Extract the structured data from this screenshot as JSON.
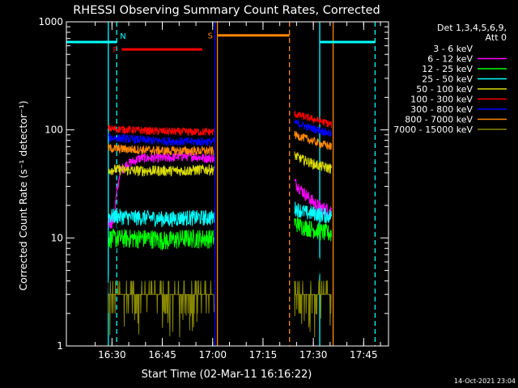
{
  "chart_data": {
    "type": "line",
    "title": "RHESSI Observing Summary Count Rates, Corrected",
    "xlabel": "Start Time (02-Mar-11 16:16:22)",
    "ylabel": "Corrected Count Rate (s⁻¹ detector⁻¹)",
    "ylog": true,
    "ylim": [
      1,
      1000
    ],
    "xlim_minutes_after_start": [
      0,
      96
    ],
    "x_ticks": [
      {
        "label": "16:30",
        "t": 13.6
      },
      {
        "label": "16:45",
        "t": 28.6
      },
      {
        "label": "17:00",
        "t": 43.6
      },
      {
        "label": "17:15",
        "t": 58.6
      },
      {
        "label": "17:30",
        "t": 73.6
      },
      {
        "label": "17:45",
        "t": 88.6
      }
    ],
    "y_ticks": [
      {
        "label": "1",
        "v": 1
      },
      {
        "label": "10",
        "v": 10
      },
      {
        "label": "100",
        "v": 100
      },
      {
        "label": "1000",
        "v": 1000
      }
    ],
    "legend_header": [
      "Det 1,3,4,5,6,9,",
      "Att 0"
    ],
    "legend_position": "right",
    "series": [
      {
        "name": "3 - 6 keV",
        "color": "#000000",
        "seg1": [
          [
            12.5,
            3.5
          ],
          [
            14,
            3.2
          ],
          [
            16,
            35
          ],
          [
            17,
            30
          ],
          [
            18,
            40
          ],
          [
            20,
            45
          ],
          [
            22,
            40
          ],
          [
            24,
            45
          ],
          [
            28,
            55
          ],
          [
            32,
            60
          ],
          [
            36,
            72
          ],
          [
            40,
            80
          ],
          [
            44,
            80
          ]
        ],
        "seg2": [
          [
            68,
            50
          ],
          [
            70,
            45
          ],
          [
            72,
            40
          ],
          [
            73.5,
            35
          ],
          [
            74,
            22
          ],
          [
            75,
            6
          ],
          [
            77,
            3.5
          ],
          [
            79,
            3
          ]
        ]
      },
      {
        "name": "6 - 12 keV",
        "color": "#ff00ff",
        "seg1": [
          [
            12.5,
            14
          ],
          [
            14,
            15
          ],
          [
            16,
            42
          ],
          [
            18,
            48
          ],
          [
            22,
            55
          ],
          [
            26,
            55
          ],
          [
            30,
            55
          ],
          [
            34,
            57
          ],
          [
            38,
            57
          ],
          [
            41,
            55
          ],
          [
            44,
            55
          ]
        ],
        "seg2": [
          [
            68,
            33
          ],
          [
            70,
            28
          ],
          [
            72,
            24
          ],
          [
            74,
            21
          ],
          [
            76,
            19
          ],
          [
            79,
            18
          ]
        ]
      },
      {
        "name": "12 - 25 keV",
        "color": "#00ff00",
        "seg1": [
          [
            12.5,
            10
          ],
          [
            15,
            10
          ],
          [
            20,
            10
          ],
          [
            25,
            10
          ],
          [
            30,
            9.5
          ],
          [
            35,
            10
          ],
          [
            40,
            10
          ],
          [
            44,
            10
          ]
        ],
        "seg2": [
          [
            68,
            14
          ],
          [
            70,
            13
          ],
          [
            72,
            12.5
          ],
          [
            74,
            12
          ],
          [
            76,
            11.5
          ],
          [
            79,
            11
          ]
        ]
      },
      {
        "name": "25 - 50 keV",
        "color": "#00ffff",
        "seg1": [
          [
            12.5,
            16
          ],
          [
            15,
            16
          ],
          [
            20,
            15.5
          ],
          [
            25,
            15.5
          ],
          [
            30,
            15
          ],
          [
            35,
            15.5
          ],
          [
            40,
            15.5
          ],
          [
            44,
            15.5
          ]
        ],
        "seg2": [
          [
            68,
            19
          ],
          [
            70,
            18
          ],
          [
            72,
            17
          ],
          [
            74,
            17
          ],
          [
            76,
            16.5
          ],
          [
            79,
            16
          ]
        ]
      },
      {
        "name": "50 - 100 keV",
        "color": "#dddd00",
        "seg1": [
          [
            12.5,
            43
          ],
          [
            15,
            43
          ],
          [
            20,
            42
          ],
          [
            25,
            42
          ],
          [
            30,
            42
          ],
          [
            35,
            42
          ],
          [
            40,
            43
          ],
          [
            44,
            43
          ]
        ],
        "seg2": [
          [
            68,
            58
          ],
          [
            70,
            54
          ],
          [
            72,
            51
          ],
          [
            74,
            48
          ],
          [
            76,
            46
          ],
          [
            79,
            44
          ]
        ]
      },
      {
        "name": "100 - 300 keV",
        "color": "#ff0000",
        "seg1": [
          [
            12.5,
            103
          ],
          [
            15,
            102
          ],
          [
            20,
            100
          ],
          [
            25,
            98
          ],
          [
            30,
            97
          ],
          [
            35,
            96
          ],
          [
            40,
            96
          ],
          [
            44,
            96
          ]
        ],
        "seg2": [
          [
            68,
            140
          ],
          [
            70,
            135
          ],
          [
            72,
            130
          ],
          [
            74,
            125
          ],
          [
            76,
            120
          ],
          [
            79,
            112
          ]
        ]
      },
      {
        "name": "300 - 800 keV",
        "color": "#0000ff",
        "seg1": [
          [
            12.5,
            85
          ],
          [
            15,
            84
          ],
          [
            20,
            82
          ],
          [
            25,
            80
          ],
          [
            30,
            79
          ],
          [
            35,
            78
          ],
          [
            40,
            78
          ],
          [
            44,
            78
          ]
        ],
        "seg2": [
          [
            68,
            118
          ],
          [
            70,
            112
          ],
          [
            72,
            106
          ],
          [
            74,
            102
          ],
          [
            76,
            98
          ],
          [
            79,
            92
          ]
        ]
      },
      {
        "name": "800 - 7000 keV",
        "color": "#ff8800",
        "seg1": [
          [
            12.5,
            68
          ],
          [
            15,
            67
          ],
          [
            20,
            66
          ],
          [
            25,
            65
          ],
          [
            30,
            64
          ],
          [
            35,
            64
          ],
          [
            40,
            64
          ],
          [
            44,
            64
          ]
        ],
        "seg2": [
          [
            68,
            90
          ],
          [
            70,
            86
          ],
          [
            72,
            82
          ],
          [
            74,
            78
          ],
          [
            76,
            74
          ],
          [
            79,
            70
          ]
        ]
      },
      {
        "name": "7000 - 15000 keV",
        "color": "#888800",
        "seg1": [
          [
            12.5,
            3
          ],
          [
            16,
            3
          ],
          [
            20,
            3
          ],
          [
            25,
            3
          ],
          [
            30,
            3
          ],
          [
            35,
            3
          ],
          [
            40,
            3
          ],
          [
            44,
            3
          ]
        ],
        "seg2": [
          [
            68,
            4
          ],
          [
            71,
            3
          ],
          [
            74,
            3
          ],
          [
            77,
            3
          ],
          [
            79,
            3
          ]
        ]
      }
    ],
    "flag_bars": [
      {
        "label": "N",
        "color": "#00ffff",
        "segments": [
          [
            0,
            15
          ],
          [
            75.5,
            92
          ]
        ],
        "value": 650
      },
      {
        "label": "F",
        "color": "#ff0000",
        "segments": [
          [
            16.5,
            40.5
          ]
        ],
        "value": 555
      },
      {
        "label": "S",
        "color": "#ff8800",
        "segments": [
          [
            45,
            66.5
          ]
        ],
        "value": 750
      }
    ],
    "vertical_lines": [
      {
        "t": 12.5,
        "color": "#00ffff",
        "dashed": false
      },
      {
        "t": 15,
        "color": "#00ffff",
        "dashed": true
      },
      {
        "t": 44.3,
        "color": "#0000ff",
        "dashed": false
      },
      {
        "t": 45,
        "color": "#ff8800",
        "dashed": false
      },
      {
        "t": 66.5,
        "color": "#ff8800",
        "dashed": true
      },
      {
        "t": 75.5,
        "color": "#00ffff",
        "dashed": false
      },
      {
        "t": 79.5,
        "color": "#ff8800",
        "dashed": false
      },
      {
        "t": 92,
        "color": "#00ffff",
        "dashed": true
      }
    ],
    "timestamp": "14-Oct-2021 23:04"
  }
}
